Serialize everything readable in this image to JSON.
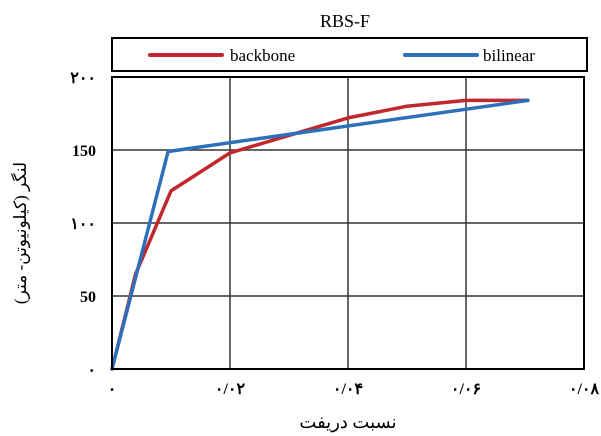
{
  "chart_data": {
    "type": "line",
    "title": "RBS-F",
    "xlabel": "نسبت دریفت",
    "ylabel": "لنگر (کیلونیوتن- متر)",
    "xlim": [
      0,
      0.08
    ],
    "ylim": [
      0,
      200
    ],
    "x_ticks": [
      0,
      0.02,
      0.04,
      0.06,
      0.08
    ],
    "y_ticks": [
      0,
      50,
      100,
      150,
      200
    ],
    "x_tick_labels": [
      "۰",
      "۰/۰۲",
      "۰/۰۴",
      "۰/۰۶",
      "۰/۰۸"
    ],
    "y_tick_labels": [
      "۰",
      "50",
      "۱۰۰",
      "150",
      "۲۰۰"
    ],
    "grid": true,
    "legend_position": "top",
    "series": [
      {
        "name": "backbone",
        "color": "#c0282d",
        "x": [
          0,
          0.004,
          0.01,
          0.02,
          0.03,
          0.04,
          0.05,
          0.06,
          0.068,
          0.0705
        ],
        "y": [
          0,
          65,
          122,
          148,
          160,
          172,
          180,
          184,
          184,
          184
        ]
      },
      {
        "name": "bilinear",
        "color": "#2e6fba",
        "x": [
          0,
          0.0095,
          0.0705
        ],
        "y": [
          0,
          149,
          184
        ]
      }
    ]
  }
}
